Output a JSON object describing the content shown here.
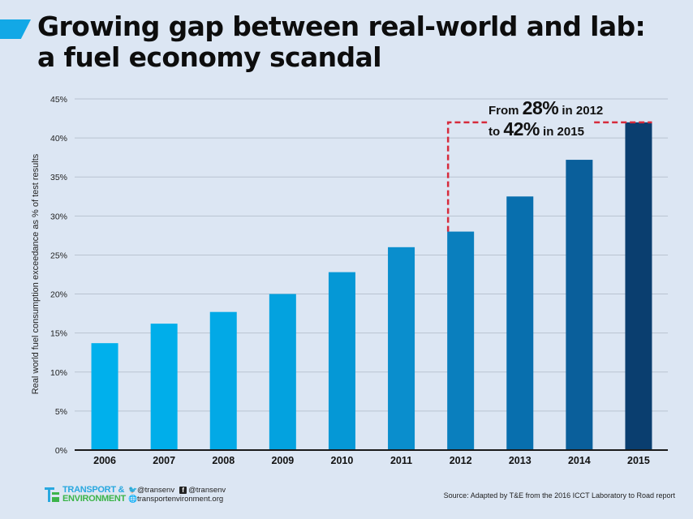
{
  "header": {
    "title_line1": "Growing gap between real-world and lab:",
    "title_line2": "a fuel economy scandal"
  },
  "annotation": {
    "from_prefix": "From ",
    "from_value": "28%",
    "from_suffix": " in 2012",
    "to_prefix": "to ",
    "to_value": "42%",
    "to_suffix": " in 2015",
    "line_color": "#d62b3c"
  },
  "chart_data": {
    "type": "bar",
    "title": "Growing gap between real-world and lab: a fuel economy scandal",
    "xlabel": "",
    "ylabel": "Real world fuel consumption exceedance as % of test results",
    "categories": [
      "2006",
      "2007",
      "2008",
      "2009",
      "2010",
      "2011",
      "2012",
      "2013",
      "2014",
      "2015"
    ],
    "values": [
      13.7,
      16.2,
      17.7,
      20.0,
      22.8,
      26.0,
      28.0,
      32.5,
      37.2,
      42.0
    ],
    "colors": [
      "#00b0ec",
      "#00aeea",
      "#02a9e6",
      "#03a2df",
      "#0598d6",
      "#0a8ecd",
      "#0a7fbe",
      "#086fae",
      "#0a5f9b",
      "#0a3e6f"
    ],
    "ylim": [
      0,
      45
    ],
    "yticks": [
      0,
      5,
      10,
      15,
      20,
      25,
      30,
      35,
      40,
      45
    ],
    "ytick_labels": [
      "0%",
      "5%",
      "10%",
      "15%",
      "20%",
      "25%",
      "30%",
      "35%",
      "40%",
      "45%"
    ],
    "grid": true,
    "legend": "none"
  },
  "footer": {
    "brand_line1": "TRANSPORT &",
    "brand_line2": "ENVIRONMENT",
    "twitter": "@transenv",
    "facebook": "@transenv",
    "website": "transportenvironment.org",
    "source": "Source: Adapted by T&E from the 2016 ICCT Laboratory to Road report"
  }
}
